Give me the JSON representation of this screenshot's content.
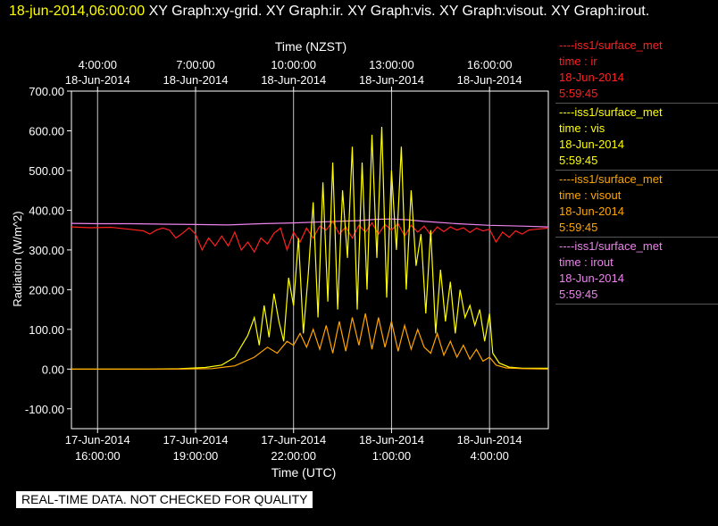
{
  "header": {
    "timestamp": "18-jun-2014,06:00:00",
    "titles": "  XY Graph:xy-grid.  XY Graph:ir.  XY Graph:vis.  XY Graph:visout.  XY Graph:irout."
  },
  "banner": "REAL-TIME DATA. NOT CHECKED FOR QUALITY",
  "colors": {
    "ir": "#ff2020",
    "vis": "#ffff00",
    "visout": "#ffa500",
    "irout": "#ee82ee",
    "grid": "#c8c8c8",
    "axis": "#ffffff"
  },
  "legend": [
    {
      "series": "ir",
      "source": "----iss1/surface_met",
      "var": "time : ir",
      "date": "18-Jun-2014",
      "time": "5:59:45"
    },
    {
      "series": "vis",
      "source": "----iss1/surface_met",
      "var": "time : vis",
      "date": "18-Jun-2014",
      "time": "5:59:45"
    },
    {
      "series": "visout",
      "source": "----iss1/surface_met",
      "var": "time : visout",
      "date": "18-Jun-2014",
      "time": "5:59:45"
    },
    {
      "series": "irout",
      "source": "----iss1/surface_met",
      "var": "time : irout",
      "date": "18-Jun-2014",
      "time": "5:59:45"
    }
  ],
  "chart_data": {
    "type": "line",
    "xlabel": "Time (UTC)",
    "x2label": "Time (NZST)",
    "ylabel": "Radiation (W/m^2)",
    "xlim_utc_hours": [
      15.2,
      29.8
    ],
    "ylim": [
      -150,
      700
    ],
    "yticks": [
      "-100.00",
      "0.00",
      "100.00",
      "200.00",
      "300.00",
      "400.00",
      "500.00",
      "600.00",
      "700.00"
    ],
    "xticks_bottom": [
      {
        "x": 16,
        "date": "17-Jun-2014",
        "time": "16:00:00"
      },
      {
        "x": 19,
        "date": "17-Jun-2014",
        "time": "19:00:00"
      },
      {
        "x": 22,
        "date": "17-Jun-2014",
        "time": "22:00:00"
      },
      {
        "x": 25,
        "date": "18-Jun-2014",
        "time": "1:00:00"
      },
      {
        "x": 28,
        "date": "18-Jun-2014",
        "time": "4:00:00"
      }
    ],
    "xticks_top": [
      {
        "x": 16,
        "time": "4:00:00",
        "date": "18-Jun-2014"
      },
      {
        "x": 19,
        "time": "7:00:00",
        "date": "18-Jun-2014"
      },
      {
        "x": 22,
        "time": "10:00:00",
        "date": "18-Jun-2014"
      },
      {
        "x": 25,
        "time": "13:00:00",
        "date": "18-Jun-2014"
      },
      {
        "x": 28,
        "time": "16:00:00",
        "date": "18-Jun-2014"
      }
    ],
    "grid": true,
    "series": [
      {
        "key": "irout",
        "name": "time : irout",
        "x": [
          15.2,
          16.0,
          17.0,
          18.0,
          19.0,
          20.0,
          21.0,
          22.0,
          23.0,
          24.0,
          24.5,
          25.0,
          25.5,
          26.0,
          27.0,
          28.0,
          29.0,
          29.8
        ],
        "y": [
          367,
          366,
          366,
          365,
          364,
          363,
          366,
          368,
          371,
          374,
          377,
          378,
          376,
          372,
          366,
          362,
          360,
          358
        ]
      },
      {
        "key": "ir",
        "name": "time : ir",
        "x": [
          15.2,
          15.8,
          16.4,
          17.0,
          17.4,
          17.6,
          17.8,
          18.0,
          18.2,
          18.4,
          18.6,
          18.8,
          19.0,
          19.2,
          19.4,
          19.6,
          19.8,
          20.0,
          20.2,
          20.4,
          20.6,
          20.8,
          21.0,
          21.2,
          21.4,
          21.6,
          21.8,
          22.0,
          22.2,
          22.4,
          22.6,
          22.8,
          23.0,
          23.2,
          23.4,
          23.6,
          23.8,
          24.0,
          24.2,
          24.4,
          24.6,
          24.8,
          25.0,
          25.2,
          25.4,
          25.6,
          25.8,
          26.0,
          26.2,
          26.4,
          26.6,
          26.8,
          27.0,
          27.2,
          27.4,
          27.6,
          27.8,
          28.0,
          28.2,
          28.4,
          28.6,
          28.8,
          29.0,
          29.2,
          29.4,
          29.8
        ],
        "y": [
          358,
          356,
          357,
          352,
          348,
          340,
          350,
          355,
          350,
          330,
          342,
          356,
          340,
          300,
          330,
          310,
          335,
          310,
          345,
          300,
          320,
          295,
          330,
          315,
          342,
          355,
          300,
          345,
          320,
          355,
          330,
          360,
          350,
          372,
          340,
          358,
          330,
          362,
          345,
          368,
          340,
          364,
          350,
          366,
          335,
          362,
          345,
          360,
          338,
          358,
          346,
          358,
          350,
          356,
          344,
          355,
          348,
          352,
          320,
          345,
          332,
          348,
          340,
          350,
          352,
          355
        ]
      },
      {
        "key": "vis",
        "name": "time : vis",
        "x": [
          15.2,
          16.5,
          17.5,
          18.5,
          19.3,
          19.8,
          20.2,
          20.6,
          20.8,
          20.95,
          21.1,
          21.25,
          21.4,
          21.55,
          21.7,
          21.85,
          22.0,
          22.15,
          22.3,
          22.45,
          22.6,
          22.75,
          22.9,
          23.05,
          23.2,
          23.35,
          23.5,
          23.65,
          23.8,
          23.95,
          24.1,
          24.25,
          24.4,
          24.55,
          24.7,
          24.85,
          25.0,
          25.15,
          25.3,
          25.45,
          25.6,
          25.75,
          25.9,
          26.05,
          26.2,
          26.35,
          26.5,
          26.65,
          26.8,
          26.95,
          27.1,
          27.25,
          27.4,
          27.55,
          27.7,
          27.85,
          28.0,
          28.1,
          28.3,
          28.6,
          29.0,
          29.8
        ],
        "y": [
          0,
          0,
          0,
          1,
          4,
          10,
          30,
          85,
          130,
          60,
          160,
          80,
          190,
          120,
          70,
          230,
          160,
          330,
          90,
          240,
          420,
          130,
          470,
          170,
          520,
          150,
          450,
          280,
          560,
          150,
          520,
          200,
          590,
          280,
          610,
          180,
          500,
          300,
          560,
          200,
          450,
          260,
          340,
          140,
          350,
          90,
          250,
          120,
          220,
          90,
          200,
          130,
          160,
          110,
          150,
          70,
          140,
          40,
          15,
          5,
          2,
          2
        ]
      },
      {
        "key": "visout",
        "name": "time : visout",
        "x": [
          15.2,
          16.5,
          17.5,
          18.5,
          19.5,
          20.2,
          20.8,
          21.2,
          21.5,
          21.8,
          22.0,
          22.2,
          22.4,
          22.6,
          22.8,
          23.0,
          23.2,
          23.4,
          23.6,
          23.8,
          24.0,
          24.2,
          24.4,
          24.6,
          24.8,
          25.0,
          25.2,
          25.4,
          25.6,
          25.8,
          26.0,
          26.2,
          26.4,
          26.6,
          26.8,
          27.0,
          27.2,
          27.4,
          27.6,
          27.8,
          28.0,
          28.2,
          28.5,
          29.0,
          29.8
        ],
        "y": [
          0,
          0,
          0,
          0,
          1,
          8,
          30,
          55,
          40,
          70,
          60,
          90,
          55,
          100,
          50,
          110,
          40,
          120,
          45,
          130,
          60,
          140,
          50,
          130,
          55,
          120,
          45,
          110,
          50,
          100,
          55,
          40,
          90,
          35,
          70,
          30,
          60,
          25,
          50,
          20,
          30,
          10,
          3,
          1,
          0
        ]
      }
    ]
  }
}
